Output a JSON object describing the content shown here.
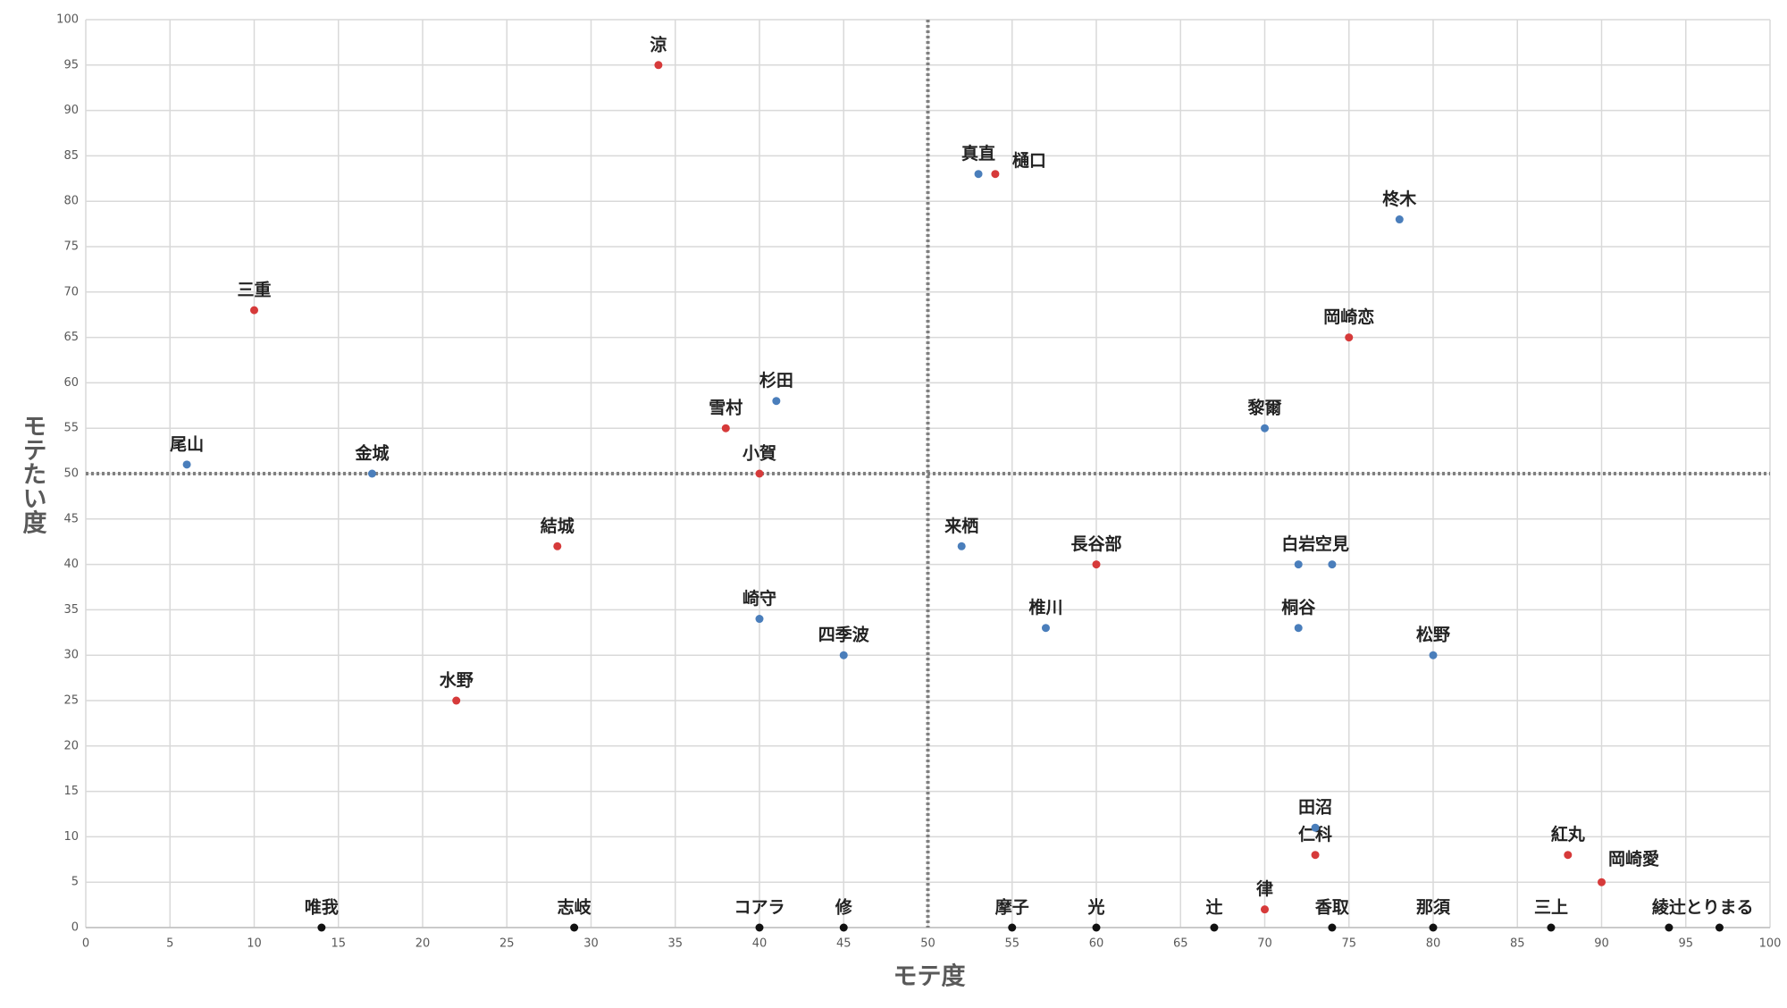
{
  "chart_data": {
    "type": "scatter",
    "x_label": "モテ度",
    "y_label": "モテたい度",
    "xlim": [
      0,
      100
    ],
    "ylim": [
      0,
      100
    ],
    "xticks": [
      0,
      5,
      10,
      15,
      20,
      25,
      30,
      35,
      40,
      45,
      50,
      55,
      60,
      65,
      70,
      75,
      80,
      85,
      90,
      95,
      100
    ],
    "yticks": [
      0,
      5,
      10,
      15,
      20,
      25,
      30,
      35,
      40,
      45,
      50,
      55,
      60,
      65,
      70,
      75,
      80,
      85,
      90,
      95,
      100
    ],
    "grid": true,
    "reference_x": 50,
    "reference_y": 50,
    "series": [
      {
        "color": "#d63a3a",
        "points": [
          {
            "label": "涼",
            "x": 34,
            "y": 95
          },
          {
            "label": "樋口",
            "x": 54,
            "y": 83
          },
          {
            "label": "三重",
            "x": 10,
            "y": 68
          },
          {
            "label": "岡崎恋",
            "x": 75,
            "y": 65
          },
          {
            "label": "雪村",
            "x": 38,
            "y": 55
          },
          {
            "label": "小賀",
            "x": 40,
            "y": 50
          },
          {
            "label": "結城",
            "x": 28,
            "y": 42
          },
          {
            "label": "長谷部",
            "x": 60,
            "y": 40
          },
          {
            "label": "水野",
            "x": 22,
            "y": 25
          },
          {
            "label": "仁科",
            "x": 73,
            "y": 8
          },
          {
            "label": "律",
            "x": 70,
            "y": 2
          },
          {
            "label": "紅丸",
            "x": 88,
            "y": 8
          },
          {
            "label": "岡崎愛",
            "x": 90,
            "y": 5
          }
        ]
      },
      {
        "color": "#4a7ebb",
        "points": [
          {
            "label": "真直",
            "x": 53,
            "y": 83
          },
          {
            "label": "柊木",
            "x": 78,
            "y": 78
          },
          {
            "label": "杉田",
            "x": 41,
            "y": 58
          },
          {
            "label": "黎爾",
            "x": 70,
            "y": 55
          },
          {
            "label": "尾山",
            "x": 6,
            "y": 51
          },
          {
            "label": "金城",
            "x": 17,
            "y": 50
          },
          {
            "label": "来栖",
            "x": 52,
            "y": 42
          },
          {
            "label": "白岩",
            "x": 72,
            "y": 40
          },
          {
            "label": "空見",
            "x": 74,
            "y": 40
          },
          {
            "label": "崎守",
            "x": 40,
            "y": 34
          },
          {
            "label": "椎川",
            "x": 57,
            "y": 33
          },
          {
            "label": "桐谷",
            "x": 72,
            "y": 33
          },
          {
            "label": "四季波",
            "x": 45,
            "y": 30
          },
          {
            "label": "松野",
            "x": 80,
            "y": 30
          },
          {
            "label": "田沼",
            "x": 73,
            "y": 11
          }
        ]
      },
      {
        "color": "#111111",
        "points": [
          {
            "label": "唯我",
            "x": 14,
            "y": 0
          },
          {
            "label": "志岐",
            "x": 29,
            "y": 0
          },
          {
            "label": "コアラ",
            "x": 40,
            "y": 0
          },
          {
            "label": "修",
            "x": 45,
            "y": 0
          },
          {
            "label": "摩子",
            "x": 55,
            "y": 0
          },
          {
            "label": "光",
            "x": 60,
            "y": 0
          },
          {
            "label": "辻",
            "x": 67,
            "y": 0
          },
          {
            "label": "香取",
            "x": 74,
            "y": 0
          },
          {
            "label": "那須",
            "x": 80,
            "y": 0
          },
          {
            "label": "三上",
            "x": 87,
            "y": 0
          },
          {
            "label": "綾辻",
            "x": 94,
            "y": 0
          },
          {
            "label": "とりまる",
            "x": 97,
            "y": 0
          }
        ]
      }
    ]
  }
}
